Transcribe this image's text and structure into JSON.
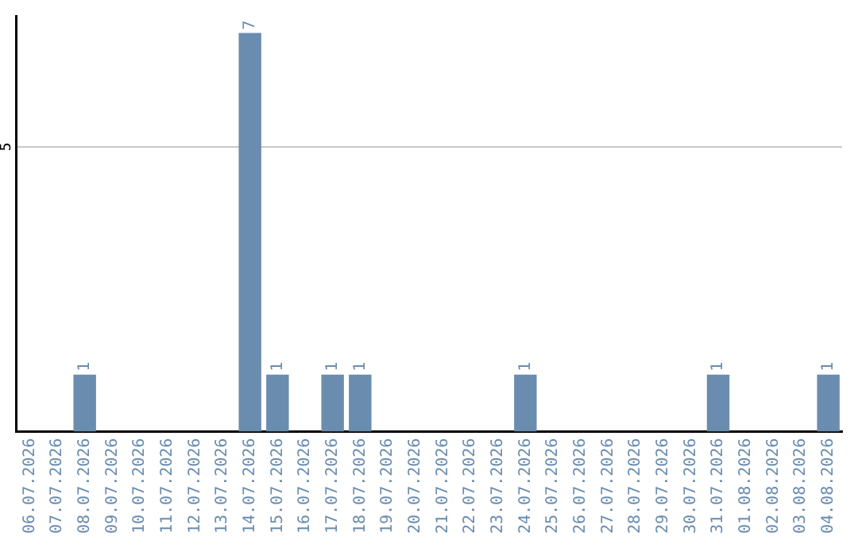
{
  "chart_data": {
    "type": "bar",
    "categories": [
      "06.07.2026",
      "07.07.2026",
      "08.07.2026",
      "09.07.2026",
      "10.07.2026",
      "11.07.2026",
      "12.07.2026",
      "13.07.2026",
      "14.07.2026",
      "15.07.2026",
      "16.07.2026",
      "17.07.2026",
      "18.07.2026",
      "19.07.2026",
      "20.07.2026",
      "21.07.2026",
      "22.07.2026",
      "23.07.2026",
      "24.07.2026",
      "25.07.2026",
      "26.07.2026",
      "27.07.2026",
      "28.07.2026",
      "29.07.2026",
      "30.07.2026",
      "31.07.2026",
      "01.08.2026",
      "02.08.2026",
      "03.08.2026",
      "04.08.2026"
    ],
    "values": [
      0,
      0,
      1,
      0,
      0,
      0,
      0,
      0,
      7,
      1,
      0,
      1,
      1,
      0,
      0,
      0,
      0,
      0,
      1,
      0,
      0,
      0,
      0,
      0,
      0,
      1,
      0,
      0,
      0,
      1
    ],
    "value_labels": [
      null,
      null,
      "1",
      null,
      null,
      null,
      null,
      null,
      "7",
      "1",
      null,
      "1",
      "1",
      null,
      null,
      null,
      null,
      null,
      "1",
      null,
      null,
      null,
      null,
      null,
      null,
      "1",
      null,
      null,
      null,
      "1"
    ],
    "color": "#6a8caf",
    "ylim": [
      0,
      7.3
    ],
    "yticks": [
      5
    ],
    "grid": "y",
    "legend": false
  }
}
